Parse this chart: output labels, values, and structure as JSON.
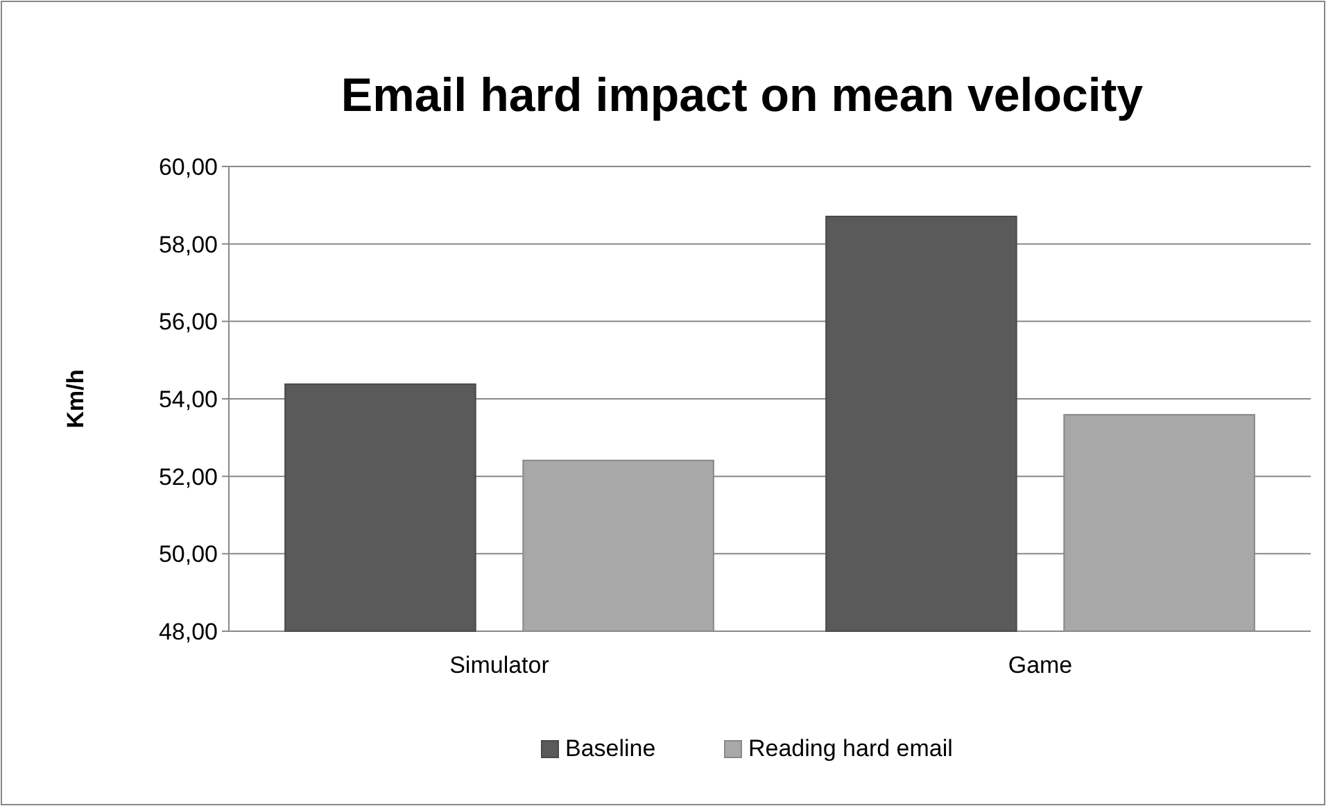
{
  "chart_data": {
    "type": "bar",
    "title": "Email hard impact on mean velocity",
    "ylabel": "Km/h",
    "categories": [
      "Simulator",
      "Game"
    ],
    "series": [
      {
        "name": "Baseline",
        "color": "#5a5a5a",
        "values": [
          54.38,
          58.71
        ]
      },
      {
        "name": "Reading hard email",
        "color": "#a8a8a8",
        "values": [
          52.41,
          53.59
        ]
      }
    ],
    "ylim": [
      48,
      60
    ],
    "yticks": [
      {
        "value": 48,
        "label": "48,00"
      },
      {
        "value": 50,
        "label": "50,00"
      },
      {
        "value": 52,
        "label": "52,00"
      },
      {
        "value": 54,
        "label": "54,00"
      },
      {
        "value": 56,
        "label": "56,00"
      },
      {
        "value": 58,
        "label": "58,00"
      },
      {
        "value": 60,
        "label": "60,00"
      }
    ],
    "grid": "y",
    "legend": "bottom"
  }
}
